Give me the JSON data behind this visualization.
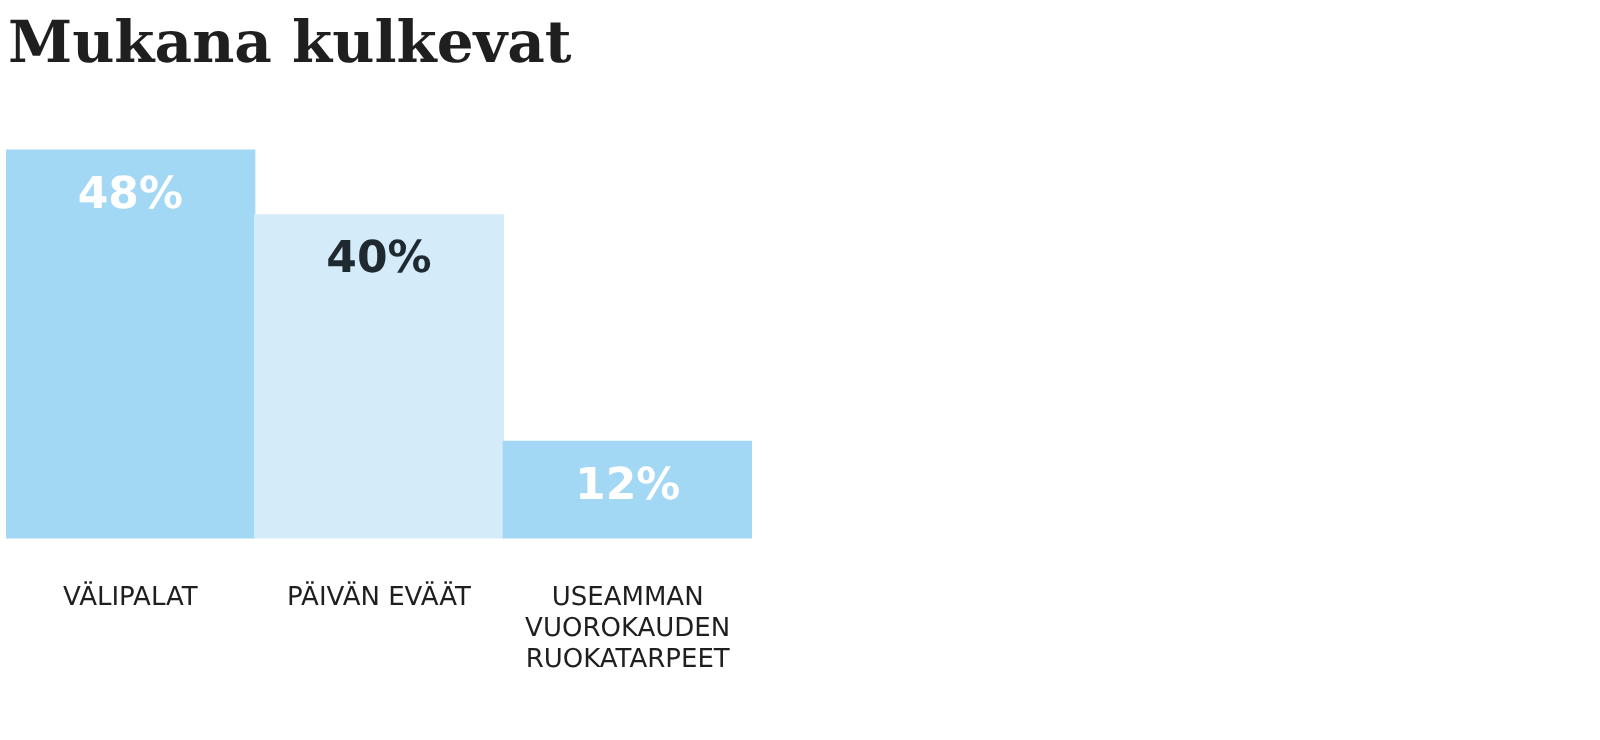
{
  "chart_data": {
    "type": "bar",
    "title": "Mukana kulkevat",
    "categories": [
      "VÄLIPALAT",
      "PÄIVÄN EVÄÄT",
      "USEAMMAN VUOROKAUDEN RUOKATARPEET"
    ],
    "values": [
      48,
      40,
      12
    ],
    "colors": [
      "#a3d8f5",
      "#d4ebfa",
      "#a3d8f5"
    ],
    "value_labels": [
      "48%",
      "40%",
      "12%"
    ],
    "grid": false,
    "legend": false
  }
}
